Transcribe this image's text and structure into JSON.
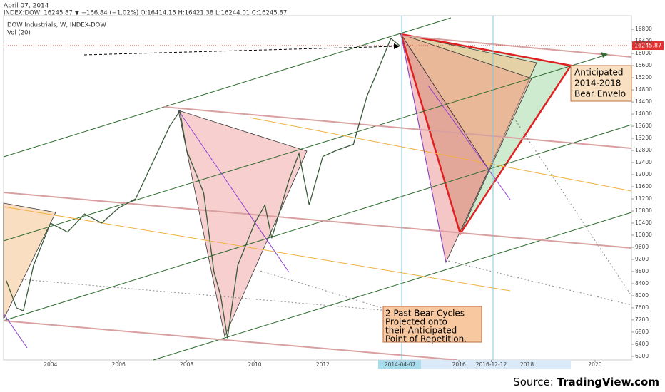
{
  "chart_data": {
    "type": "line",
    "date": "April 07, 2014",
    "header": "INDEX:DOWI 16245.87 ▼ −166.84 (−1.02%) O:16414.15 H:16421.38 L:16244.01 C:16245.87",
    "title": "DOW Industrials, W, INDEX-DOW",
    "subtitle": "Vol (20)",
    "last_price_label": "16245.87",
    "annotations": [
      "Anticipated",
      "2014-2018",
      "Bear Envelo",
      "2 Past Bear Cycles",
      "Projected onto",
      "their Anticipated",
      "Point of Repetition."
    ],
    "source": "Source: ",
    "source_site": "TradingView.com",
    "x": [
      2002.7,
      2003.0,
      2003.2,
      2003.5,
      2004.0,
      2004.5,
      2005.0,
      2005.5,
      2006.0,
      2006.5,
      2007.0,
      2007.5,
      2007.8,
      2008.0,
      2008.5,
      2008.8,
      2009.0,
      2009.2,
      2009.5,
      2010.0,
      2010.3,
      2010.5,
      2011.0,
      2011.3,
      2011.6,
      2012.0,
      2012.4,
      2012.9,
      2013.3,
      2013.6,
      2014.0,
      2014.27
    ],
    "series": [
      {
        "name": "DOW Industrials",
        "color": "#3a5a3a",
        "values": [
          8500,
          7600,
          7500,
          9000,
          10400,
          10100,
          10700,
          10400,
          10900,
          11200,
          12400,
          13600,
          14100,
          12800,
          11400,
          8800,
          8000,
          6600,
          9000,
          10400,
          11000,
          9900,
          11800,
          12700,
          11000,
          12600,
          12800,
          13000,
          14600,
          15400,
          16500,
          16245.87
        ]
      }
    ],
    "xlim": [
      2002.62,
      2021.07
    ],
    "xticks": [
      2004,
      2006,
      2008,
      2010,
      2012,
      {
        "value": 2014.27,
        "label": "2014-04-07"
      },
      2016,
      {
        "value": 2016.95,
        "label": "2016-12-12"
      },
      2018,
      2020
    ],
    "ylim": [
      5880,
      17250
    ],
    "yticks": [
      6000,
      6400,
      6800,
      7200,
      7600,
      8000,
      8400,
      8800,
      9200,
      9600,
      10000,
      10400,
      10800,
      11200,
      11600,
      12000,
      12400,
      12800,
      13200,
      13600,
      14000,
      14400,
      14800,
      15200,
      15600,
      16000,
      16400,
      16800
    ]
  }
}
